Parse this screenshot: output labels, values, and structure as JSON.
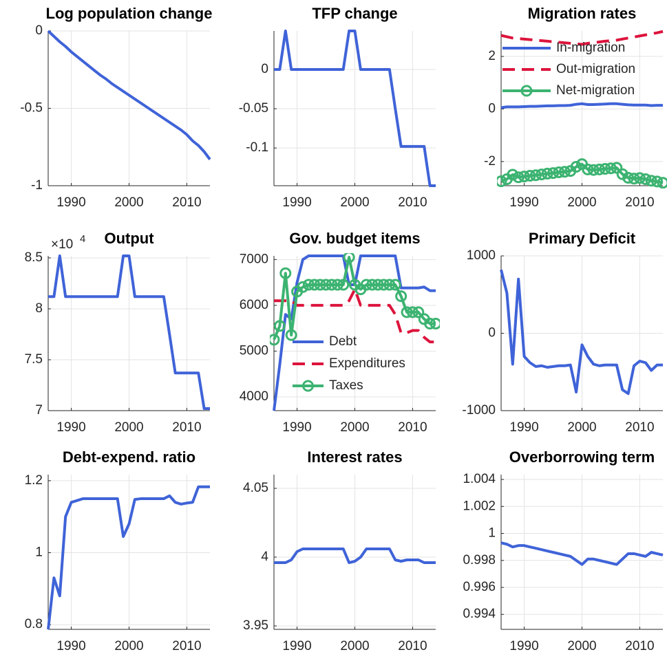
{
  "chart_data": [
    {
      "type": "line",
      "title": "Log population change",
      "color": "#3f63d8",
      "grid": true,
      "x": [
        1986,
        1987,
        1988,
        1989,
        1990,
        1991,
        1992,
        1993,
        1994,
        1995,
        1996,
        1997,
        1998,
        1999,
        2000,
        2001,
        2002,
        2003,
        2004,
        2005,
        2006,
        2007,
        2008,
        2009,
        2010,
        2011,
        2012,
        2013,
        2014
      ],
      "values": [
        0,
        -0.035,
        -0.07,
        -0.1,
        -0.135,
        -0.165,
        -0.195,
        -0.225,
        -0.255,
        -0.285,
        -0.31,
        -0.34,
        -0.365,
        -0.39,
        -0.415,
        -0.44,
        -0.465,
        -0.49,
        -0.515,
        -0.54,
        -0.565,
        -0.59,
        -0.615,
        -0.64,
        -0.67,
        -0.71,
        -0.74,
        -0.78,
        -0.83
      ],
      "xlim": [
        1986,
        2014
      ],
      "xticks": [
        1990,
        2000,
        2010
      ],
      "ylim": [
        -1,
        0
      ],
      "yticks": [
        -1,
        -0.5,
        0
      ]
    },
    {
      "type": "line",
      "title": "TFP change",
      "color": "#3f63d8",
      "grid": true,
      "x": [
        1986,
        1987,
        1988,
        1989,
        1990,
        1991,
        1992,
        1993,
        1994,
        1995,
        1996,
        1997,
        1998,
        1999,
        2000,
        2001,
        2002,
        2003,
        2004,
        2005,
        2006,
        2007,
        2008,
        2009,
        2010,
        2011,
        2012,
        2013,
        2014
      ],
      "values": [
        0,
        0,
        0.049,
        0,
        0,
        0,
        0,
        0,
        0,
        0,
        0,
        0,
        0,
        0.049,
        0.049,
        0,
        0,
        0,
        0,
        0,
        0,
        -0.05,
        -0.098,
        -0.098,
        -0.098,
        -0.098,
        -0.098,
        -0.148,
        -0.148
      ],
      "xlim": [
        1986,
        2014
      ],
      "xticks": [
        1990,
        2000,
        2010
      ],
      "ylim": [
        -0.148,
        0.049
      ],
      "yticks": [
        -0.1,
        -0.05,
        0
      ]
    },
    {
      "type": "line",
      "title": "Migration rates",
      "grid": true,
      "legend": "northeast",
      "x": [
        1986,
        1987,
        1988,
        1989,
        1990,
        1991,
        1992,
        1993,
        1994,
        1995,
        1996,
        1997,
        1998,
        1999,
        2000,
        2001,
        2002,
        2003,
        2004,
        2005,
        2006,
        2007,
        2008,
        2009,
        2010,
        2011,
        2012,
        2013,
        2014
      ],
      "series": [
        {
          "name": "In-migration",
          "color": "#3f63d8",
          "linestyle": "-",
          "values": [
            0.05,
            0.08,
            0.08,
            0.08,
            0.09,
            0.1,
            0.1,
            0.11,
            0.12,
            0.12,
            0.13,
            0.13,
            0.14,
            0.18,
            0.2,
            0.17,
            0.17,
            0.18,
            0.19,
            0.2,
            0.2,
            0.18,
            0.16,
            0.15,
            0.15,
            0.15,
            0.13,
            0.14,
            0.14
          ]
        },
        {
          "name": "Out-migration",
          "color": "#dc143c",
          "linestyle": "--",
          "values": [
            2.8,
            2.75,
            2.7,
            2.68,
            2.66,
            2.64,
            2.62,
            2.6,
            2.58,
            2.56,
            2.54,
            2.52,
            2.5,
            2.48,
            2.46,
            2.5,
            2.52,
            2.55,
            2.58,
            2.6,
            2.62,
            2.66,
            2.7,
            2.74,
            2.78,
            2.82,
            2.86,
            2.9,
            2.95
          ]
        },
        {
          "name": "Net-migration",
          "color": "#3cb371",
          "linestyle": "-",
          "marker": "o",
          "values": [
            -2.75,
            -2.67,
            -2.5,
            -2.6,
            -2.57,
            -2.54,
            -2.52,
            -2.49,
            -2.46,
            -2.44,
            -2.41,
            -2.39,
            -2.36,
            -2.2,
            -2.1,
            -2.3,
            -2.32,
            -2.3,
            -2.28,
            -2.26,
            -2.24,
            -2.48,
            -2.62,
            -2.65,
            -2.63,
            -2.67,
            -2.73,
            -2.76,
            -2.81
          ]
        }
      ],
      "xlim": [
        1986,
        2014
      ],
      "xticks": [
        1990,
        2000,
        2010
      ],
      "ylim": [
        -2.92,
        2.97
      ],
      "yticks": [
        -2,
        0,
        2
      ]
    },
    {
      "type": "line",
      "title": "Output",
      "y_exponent": {
        "base": "×10",
        "power": "4"
      },
      "color": "#3f63d8",
      "grid": true,
      "x": [
        1986,
        1987,
        1988,
        1989,
        1990,
        1991,
        1992,
        1993,
        1994,
        1995,
        1996,
        1997,
        1998,
        1999,
        2000,
        2001,
        2002,
        2003,
        2004,
        2005,
        2006,
        2007,
        2008,
        2009,
        2010,
        2011,
        2012,
        2013,
        2014
      ],
      "values": [
        8.12,
        8.12,
        8.52,
        8.12,
        8.12,
        8.12,
        8.12,
        8.12,
        8.12,
        8.12,
        8.12,
        8.12,
        8.12,
        8.52,
        8.52,
        8.12,
        8.12,
        8.12,
        8.12,
        8.12,
        8.12,
        7.75,
        7.37,
        7.37,
        7.37,
        7.37,
        7.37,
        7.02,
        7.02
      ],
      "xlim": [
        1986,
        2014
      ],
      "xticks": [
        1990,
        2000,
        2010
      ],
      "ylim": [
        7,
        8.52
      ],
      "yticks": [
        7,
        7.5,
        8,
        8.5
      ]
    },
    {
      "type": "line",
      "title": "Gov. budget items",
      "grid": true,
      "legend": "south",
      "x": [
        1986,
        1987,
        1988,
        1989,
        1990,
        1991,
        1992,
        1993,
        1994,
        1995,
        1996,
        1997,
        1998,
        1999,
        2000,
        2001,
        2002,
        2003,
        2004,
        2005,
        2006,
        2007,
        2008,
        2009,
        2010,
        2011,
        2012,
        2013,
        2014
      ],
      "series": [
        {
          "name": "Debt",
          "color": "#3f63d8",
          "linestyle": "-",
          "values": [
            3700,
            4700,
            5800,
            5700,
            6500,
            7000,
            7080,
            7080,
            7080,
            7080,
            7080,
            7080,
            7080,
            6450,
            6450,
            7080,
            7080,
            7080,
            7080,
            7080,
            7080,
            7080,
            6380,
            6380,
            6380,
            6380,
            6400,
            6320,
            6320
          ]
        },
        {
          "name": "Expenditures",
          "color": "#dc143c",
          "linestyle": "--",
          "values": [
            6100,
            6100,
            6100,
            6100,
            6000,
            6000,
            6000,
            6000,
            6000,
            6000,
            6000,
            6000,
            6000,
            6100,
            6350,
            6000,
            6000,
            6000,
            6000,
            6000,
            6000,
            5800,
            5400,
            5400,
            5450,
            5450,
            5300,
            5200,
            5200
          ]
        },
        {
          "name": "Taxes",
          "color": "#3cb371",
          "linestyle": "-",
          "marker": "o",
          "values": [
            5250,
            5550,
            6700,
            5350,
            6300,
            6400,
            6450,
            6450,
            6450,
            6450,
            6450,
            6450,
            6450,
            7050,
            6450,
            6350,
            6450,
            6450,
            6450,
            6450,
            6450,
            6450,
            6200,
            5850,
            5850,
            5850,
            5700,
            5600,
            5600
          ]
        }
      ],
      "xlim": [
        1986,
        2014
      ],
      "xticks": [
        1990,
        2000,
        2010
      ],
      "ylim": [
        3700,
        7080
      ],
      "yticks": [
        4000,
        5000,
        6000,
        7000
      ]
    },
    {
      "type": "line",
      "title": "Primary Deficit",
      "color": "#3f63d8",
      "grid": true,
      "x": [
        1986,
        1987,
        1988,
        1989,
        1990,
        1991,
        1992,
        1993,
        1994,
        1995,
        1996,
        1997,
        1998,
        1999,
        2000,
        2001,
        2002,
        2003,
        2004,
        2005,
        2006,
        2007,
        2008,
        2009,
        2010,
        2011,
        2012,
        2013,
        2014
      ],
      "values": [
        820,
        520,
        -400,
        700,
        -300,
        -380,
        -430,
        -420,
        -440,
        -430,
        -420,
        -420,
        -410,
        -760,
        -150,
        -300,
        -400,
        -420,
        -410,
        -410,
        -410,
        -730,
        -780,
        -420,
        -360,
        -380,
        -480,
        -410,
        -410
      ],
      "xlim": [
        1986,
        2014
      ],
      "xticks": [
        1990,
        2000,
        2010
      ],
      "ylim": [
        -1000,
        1000
      ],
      "yticks": [
        -1000,
        0,
        1000
      ]
    },
    {
      "type": "line",
      "title": "Debt-expend. ratio",
      "color": "#3f63d8",
      "grid": true,
      "x": [
        1986,
        1987,
        1988,
        1989,
        1990,
        1991,
        1992,
        1993,
        1994,
        1995,
        1996,
        1997,
        1998,
        1999,
        2000,
        2001,
        2002,
        2003,
        2004,
        2005,
        2006,
        2007,
        2008,
        2009,
        2010,
        2011,
        2012,
        2013,
        2014
      ],
      "values": [
        0.787,
        0.93,
        0.88,
        1.1,
        1.14,
        1.145,
        1.15,
        1.15,
        1.15,
        1.15,
        1.15,
        1.15,
        1.15,
        1.045,
        1.08,
        1.148,
        1.15,
        1.15,
        1.15,
        1.15,
        1.15,
        1.158,
        1.14,
        1.135,
        1.138,
        1.14,
        1.183,
        1.183,
        1.183
      ],
      "xlim": [
        1986,
        2014
      ],
      "xticks": [
        1990,
        2000,
        2010
      ],
      "ylim": [
        0.787,
        1.217
      ],
      "yticks": [
        0.8,
        1,
        1.2
      ]
    },
    {
      "type": "line",
      "title": "Interest rates",
      "color": "#3f63d8",
      "grid": true,
      "x": [
        1986,
        1987,
        1988,
        1989,
        1990,
        1991,
        1992,
        1993,
        1994,
        1995,
        1996,
        1997,
        1998,
        1999,
        2000,
        2001,
        2002,
        2003,
        2004,
        2005,
        2006,
        2007,
        2008,
        2009,
        2010,
        2011,
        2012,
        2013,
        2014
      ],
      "values": [
        3.996,
        3.996,
        3.996,
        3.998,
        4.004,
        4.006,
        4.006,
        4.006,
        4.006,
        4.006,
        4.006,
        4.006,
        4.006,
        3.996,
        3.997,
        4.0,
        4.006,
        4.006,
        4.006,
        4.006,
        4.006,
        3.998,
        3.997,
        3.998,
        3.998,
        3.998,
        3.996,
        3.996,
        3.996
      ],
      "xlim": [
        1986,
        2014
      ],
      "xticks": [
        1990,
        2000,
        2010
      ],
      "ylim": [
        3.9475,
        4.06
      ],
      "yticks": [
        3.95,
        4,
        4.05
      ]
    },
    {
      "type": "line",
      "title": "Overborrowing term",
      "color": "#3f63d8",
      "grid": true,
      "x": [
        1986,
        1987,
        1988,
        1989,
        1990,
        1991,
        1992,
        1993,
        1994,
        1995,
        1996,
        1997,
        1998,
        1999,
        2000,
        2001,
        2002,
        2003,
        2004,
        2005,
        2006,
        2007,
        2008,
        2009,
        2010,
        2011,
        2012,
        2013,
        2014
      ],
      "values": [
        0.9993,
        0.9992,
        0.999,
        0.9991,
        0.9991,
        0.999,
        0.9989,
        0.9988,
        0.9987,
        0.9986,
        0.9985,
        0.9984,
        0.9983,
        0.998,
        0.9977,
        0.9981,
        0.9981,
        0.998,
        0.9979,
        0.9978,
        0.9977,
        0.9981,
        0.9985,
        0.9985,
        0.9984,
        0.9983,
        0.9986,
        0.9985,
        0.9984
      ],
      "xlim": [
        1986,
        2014
      ],
      "xticks": [
        1990,
        2000,
        2010
      ],
      "ylim": [
        0.99289,
        1.00436
      ],
      "yticks": [
        0.994,
        0.996,
        0.998,
        1,
        1.002,
        1.004
      ]
    }
  ]
}
